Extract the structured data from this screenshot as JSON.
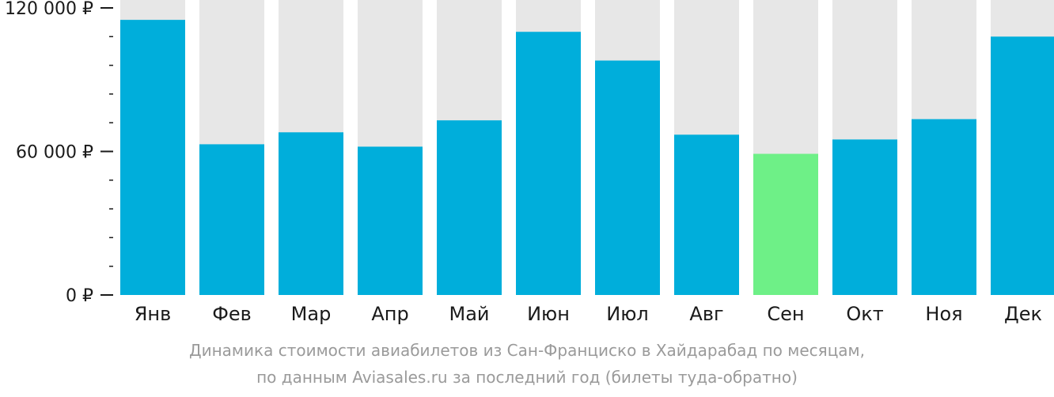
{
  "chart_data": {
    "type": "bar",
    "categories": [
      "Янв",
      "Фев",
      "Мар",
      "Апр",
      "Май",
      "Июн",
      "Июл",
      "Авг",
      "Сен",
      "Окт",
      "Ноя",
      "Дек"
    ],
    "values": [
      115000,
      63000,
      68000,
      62000,
      73000,
      110000,
      98000,
      67000,
      59000,
      65000,
      73500,
      108000
    ],
    "highlight_index": 8,
    "ylim": [
      0,
      120000
    ],
    "yticks": [
      {
        "value": 0,
        "label": "0 ₽"
      },
      {
        "value": 60000,
        "label": "60 000 ₽"
      },
      {
        "value": 120000,
        "label": "120 000 ₽"
      }
    ],
    "minor_tick_step": 12000,
    "colors": {
      "bar": "#00aedb",
      "highlight": "#6ef087",
      "background_bar": "#e7e7e7",
      "axis": "#1a1a1a"
    },
    "grid": false
  },
  "caption": {
    "line1": "Динамика стоимости авиабилетов из Сан-Франциско в Хайдарабад по месяцам,",
    "line2": "по данным Aviasales.ru за последний год (билеты туда-обратно)"
  }
}
